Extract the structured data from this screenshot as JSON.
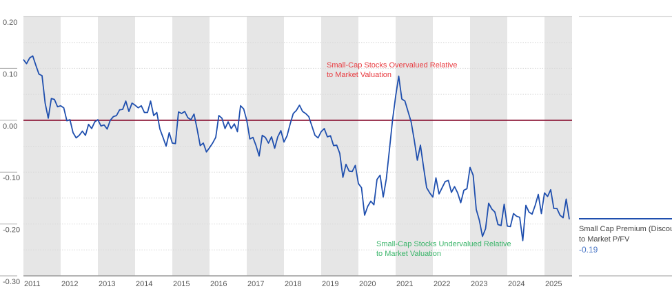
{
  "chart_data": {
    "type": "line",
    "title": "",
    "xlabel": "",
    "ylabel": "",
    "ylim": [
      -0.3,
      0.2
    ],
    "yticks": [
      "0.20",
      "0.10",
      "0.00",
      "-0.10",
      "-0.20",
      "-0.30"
    ],
    "xticks": [
      "2011",
      "2012",
      "2013",
      "2014",
      "2015",
      "2016",
      "2017",
      "2018",
      "2019",
      "2020",
      "2021",
      "2022",
      "2023",
      "2024",
      "2025"
    ],
    "grid": true,
    "shaded_years": [
      "2011",
      "2013",
      "2015",
      "2017",
      "2019",
      "2021",
      "2023",
      "2025"
    ],
    "reference_line": {
      "y": 0.0,
      "color": "#8b1535"
    },
    "legend_position": "right",
    "series": [
      {
        "name": "Small Cap Premium (Discount) to Market P/FV",
        "color": "#1f4fae",
        "latest_value": "-0.19",
        "values_by_year": {
          "2011": [
            0.117,
            0.109,
            0.12,
            0.124,
            0.106,
            0.089,
            0.086,
            0.033,
            0.004,
            0.042,
            0.04,
            0.026
          ],
          "2012": [
            0.028,
            0.024,
            -0.001,
            0.001,
            -0.024,
            -0.034,
            -0.029,
            -0.021,
            -0.029,
            -0.008,
            -0.016,
            -0.003
          ],
          "2013": [
            0.001,
            -0.011,
            -0.009,
            -0.017,
            0,
            0.007,
            0.009,
            0.02,
            0.021,
            0.037,
            0.017,
            0.033
          ],
          "2014": [
            0.029,
            0.024,
            0.028,
            0.015,
            0.015,
            0.037,
            0.009,
            0.015,
            -0.017,
            -0.033,
            -0.05,
            -0.024
          ],
          "2015": [
            -0.044,
            -0.045,
            0.016,
            0.013,
            0.017,
            0.005,
            0.001,
            0.012,
            -0.017,
            -0.049,
            -0.044,
            -0.061
          ],
          "2016": [
            -0.053,
            -0.044,
            -0.033,
            0.009,
            0.004,
            -0.016,
            -0.003,
            -0.016,
            -0.007,
            -0.022,
            0.028,
            0.022
          ],
          "2017": [
            0,
            -0.036,
            -0.033,
            -0.049,
            -0.069,
            -0.029,
            -0.033,
            -0.044,
            -0.032,
            -0.054,
            -0.032,
            -0.02
          ],
          "2018": [
            -0.042,
            -0.03,
            -0.007,
            0.013,
            0.019,
            0.029,
            0.017,
            0.013,
            0.007,
            -0.011,
            -0.029,
            -0.034
          ],
          "2019": [
            -0.022,
            -0.016,
            -0.032,
            -0.03,
            -0.049,
            -0.048,
            -0.064,
            -0.11,
            -0.085,
            -0.098,
            -0.099,
            -0.087
          ],
          "2020": [
            -0.122,
            -0.13,
            -0.183,
            -0.166,
            -0.156,
            -0.163,
            -0.114,
            -0.106,
            -0.148,
            -0.113,
            -0.057,
            0
          ],
          "2021": [
            0.046,
            0.085,
            0.041,
            0.037,
            0.017,
            -0.003,
            -0.038,
            -0.077,
            -0.048,
            -0.09,
            -0.13,
            -0.14
          ],
          "2022": [
            -0.148,
            -0.111,
            -0.142,
            -0.13,
            -0.118,
            -0.116,
            -0.139,
            -0.128,
            -0.14,
            -0.159,
            -0.135,
            -0.132
          ],
          "2023": [
            -0.091,
            -0.106,
            -0.172,
            -0.193,
            -0.224,
            -0.209,
            -0.16,
            -0.171,
            -0.177,
            -0.201,
            -0.203,
            -0.162
          ],
          "2024": [
            -0.204,
            -0.205,
            -0.18,
            -0.185,
            -0.187,
            -0.232,
            -0.164,
            -0.177,
            -0.181,
            -0.164,
            -0.143,
            -0.18
          ],
          "2025": [
            -0.14,
            -0.147,
            -0.134,
            -0.17,
            -0.17,
            -0.183,
            -0.188,
            -0.152,
            -0.191
          ]
        }
      }
    ],
    "annotations": [
      {
        "lines": [
          "Small-Cap Stocks Overvalued Relative",
          "to Market Valuation"
        ],
        "color": "#e83a3f"
      },
      {
        "lines": [
          "Small-Cap Stocks Undervalued Relative",
          "to Market Valuation"
        ],
        "color": "#3bb56a"
      }
    ],
    "legend": {
      "label_lines": [
        "Small Cap Premium (Discount)",
        "to Market P/FV"
      ],
      "value": "-0.19",
      "value_color": "#4a76c6"
    }
  }
}
